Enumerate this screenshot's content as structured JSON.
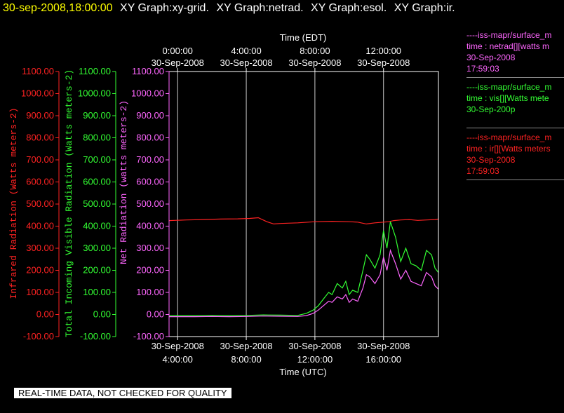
{
  "header": {
    "timestamp": "30-sep-2008,18:00:00",
    "titles": [
      "XY Graph:xy-grid.",
      "XY Graph:netrad.",
      "XY Graph:esol.",
      "XY Graph:ir."
    ]
  },
  "legend": [
    {
      "source": "----iss-mapr/surface_m",
      "var": "time : netrad[][watts m",
      "date": "30-Sep-2008",
      "time": "17:59:03",
      "color": "#ff66ff"
    },
    {
      "source": "----iss-mapr/surface_m",
      "var": "time : vis[][Watts mete",
      "date": "30-Sep-200p",
      "time": "",
      "color": "#33ff33"
    },
    {
      "source": "----iss-mapr/surface_m",
      "var": "time : ir[][Watts meters",
      "date": "30-Sep-2008",
      "time": "17:59:03",
      "color": "#ff2222"
    }
  ],
  "banner": "REAL-TIME DATA, NOT CHECKED FOR QUALITY",
  "colors": {
    "ir": "#ff2222",
    "vis": "#33ff33",
    "net": "#ff66ff",
    "text": "#ffffff",
    "title": "#ffff00"
  },
  "chart_data": {
    "type": "line",
    "xlabel_bottom": "Time (UTC)",
    "xlabel_top": "Time (EDT)",
    "x_range_utc_hours": [
      3.5,
      19.2
    ],
    "bottom_ticks": [
      {
        "x": 4,
        "l1": "30-Sep-2008",
        "l2": "4:00:00"
      },
      {
        "x": 8,
        "l1": "30-Sep-2008",
        "l2": "8:00:00"
      },
      {
        "x": 12,
        "l1": "30-Sep-2008",
        "l2": "12:00:00"
      },
      {
        "x": 16,
        "l1": "30-Sep-2008",
        "l2": "16:00:00"
      }
    ],
    "top_ticks": [
      {
        "x": 4,
        "l1": "0:00:00",
        "l2": "30-Sep-2008"
      },
      {
        "x": 8,
        "l1": "4:00:00",
        "l2": "30-Sep-2008"
      },
      {
        "x": 12,
        "l1": "8:00:00",
        "l2": "30-Sep-2008"
      },
      {
        "x": 16,
        "l1": "12:00:00",
        "l2": "30-Sep-2008"
      }
    ],
    "y_range": [
      -100,
      1100
    ],
    "y_ticks": [
      "-100.00",
      "0.00",
      "100.00",
      "200.00",
      "300.00",
      "400.00",
      "500.00",
      "600.00",
      "700.00",
      "800.00",
      "900.00",
      "1000.00",
      "1100.00"
    ],
    "axes": [
      {
        "key": "ir",
        "label": "Infrared Radiation (Watts meters-2)",
        "color": "#ff2222"
      },
      {
        "key": "vis",
        "label": "Total Incoming Visible Radiation (Watts meters-2)",
        "color": "#33ff33"
      },
      {
        "key": "net",
        "label": "Net Radiation (watts meters-2)",
        "color": "#ff66ff"
      }
    ],
    "series": [
      {
        "name": "ir",
        "color": "#ff2222",
        "x": [
          3.5,
          4.5,
          5.5,
          6.5,
          7.5,
          8.2,
          8.7,
          9.2,
          9.6,
          10.0,
          11.0,
          12.0,
          13.0,
          14.0,
          14.5,
          15.0,
          15.5,
          16.0,
          16.3,
          16.6,
          17.0,
          17.5,
          18.0,
          18.5,
          19.0,
          19.2
        ],
        "values": [
          425,
          428,
          430,
          432,
          433,
          435,
          438,
          420,
          410,
          412,
          415,
          420,
          422,
          420,
          418,
          410,
          415,
          418,
          420,
          425,
          428,
          430,
          426,
          428,
          430,
          432
        ]
      },
      {
        "name": "vis",
        "color": "#33ff33",
        "x": [
          3.5,
          5,
          6,
          7,
          8,
          9,
          10,
          11,
          11.5,
          11.9,
          12.2,
          12.5,
          12.8,
          13.0,
          13.3,
          13.6,
          13.8,
          14.0,
          14.2,
          14.5,
          14.8,
          15.0,
          15.2,
          15.5,
          15.8,
          16.0,
          16.2,
          16.4,
          16.7,
          17.0,
          17.3,
          17.6,
          17.9,
          18.2,
          18.5,
          18.8,
          19.0,
          19.2
        ],
        "values": [
          -5,
          -5,
          -4,
          -5,
          -4,
          -2,
          -3,
          -4,
          5,
          20,
          40,
          70,
          100,
          90,
          140,
          120,
          150,
          90,
          110,
          100,
          200,
          270,
          250,
          210,
          270,
          380,
          300,
          420,
          350,
          240,
          300,
          230,
          220,
          200,
          290,
          270,
          210,
          190
        ]
      },
      {
        "name": "net",
        "color": "#ff66ff",
        "x": [
          3.5,
          5,
          6,
          7,
          8,
          9,
          10,
          11,
          11.5,
          11.9,
          12.2,
          12.5,
          12.8,
          13.0,
          13.3,
          13.6,
          13.8,
          14.0,
          14.2,
          14.5,
          14.8,
          15.0,
          15.2,
          15.5,
          15.8,
          16.0,
          16.2,
          16.4,
          16.7,
          17.0,
          17.3,
          17.6,
          17.9,
          18.2,
          18.5,
          18.8,
          19.0,
          19.2
        ],
        "values": [
          -10,
          -10,
          -9,
          -10,
          -9,
          -7,
          -8,
          -9,
          -5,
          5,
          20,
          40,
          60,
          55,
          80,
          70,
          90,
          55,
          70,
          60,
          120,
          180,
          170,
          140,
          180,
          260,
          200,
          290,
          230,
          160,
          200,
          150,
          140,
          130,
          190,
          170,
          130,
          115
        ]
      }
    ]
  }
}
